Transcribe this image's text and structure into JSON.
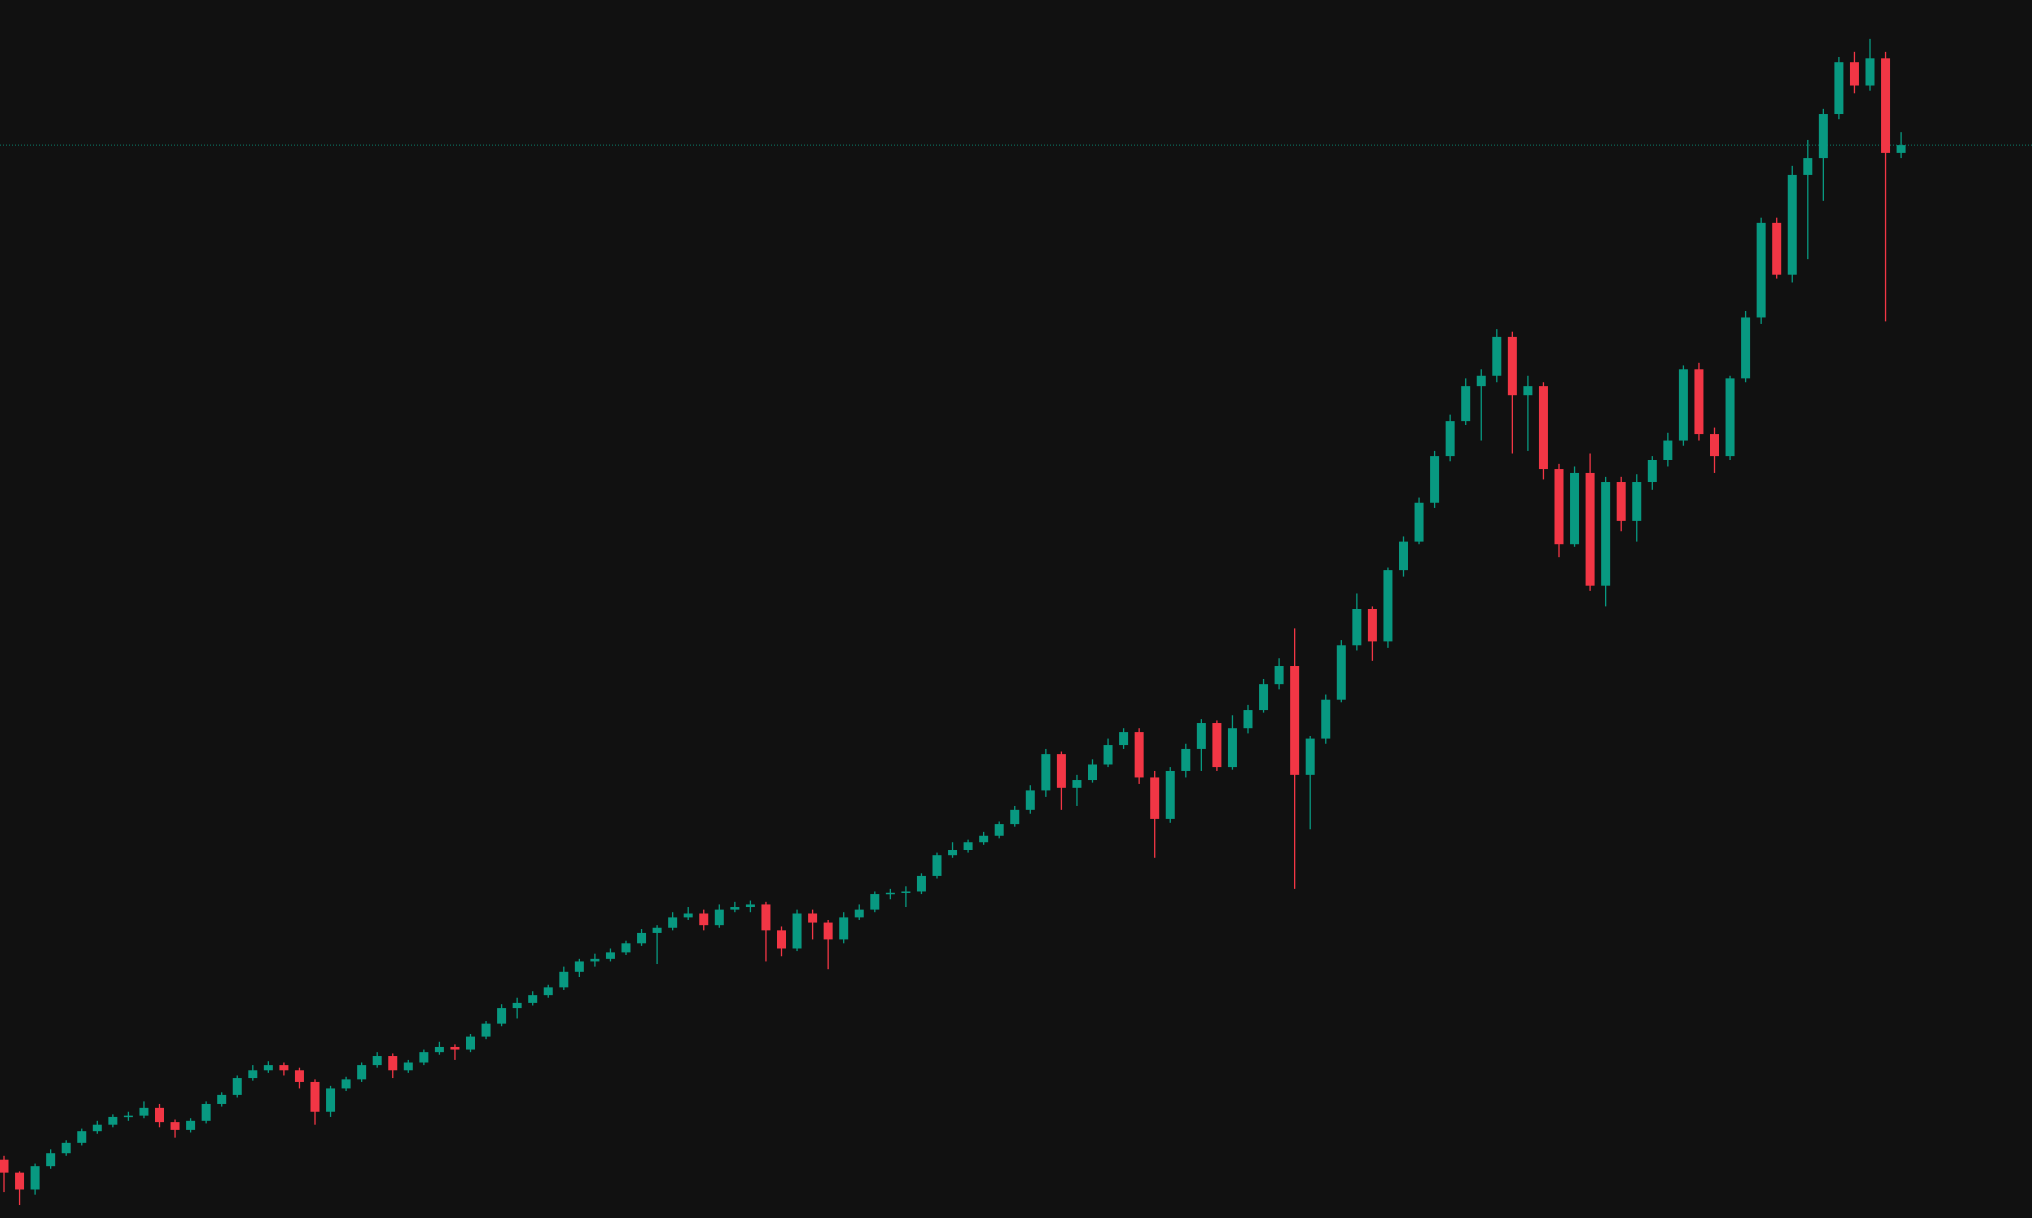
{
  "chart_data": {
    "type": "candlestick",
    "up_color": "#089981",
    "down_color": "#f23645",
    "background": "#111111",
    "ylim": [
      0,
      940
    ],
    "price_line": true,
    "open": [
      45,
      35,
      22,
      40,
      50,
      58,
      67,
      72,
      78,
      79,
      85,
      74,
      68,
      75,
      88,
      95,
      108,
      114,
      118,
      114,
      105,
      82,
      100,
      107,
      118,
      125,
      114,
      120,
      128,
      132,
      130,
      140,
      150,
      162,
      166,
      172,
      178,
      190,
      198,
      200,
      205,
      212,
      220,
      224,
      232,
      235,
      226,
      238,
      240,
      242,
      222,
      208,
      235,
      228,
      215,
      232,
      238,
      250,
      251,
      252,
      264,
      280,
      284,
      290,
      295,
      304,
      315,
      330,
      358,
      332,
      338,
      350,
      365,
      375,
      340,
      308,
      345,
      362,
      382,
      348,
      378,
      392,
      412,
      426,
      342,
      370,
      400,
      442,
      470,
      445,
      500,
      522,
      552,
      588,
      615,
      642,
      650,
      680,
      635,
      642,
      578,
      520,
      575,
      488,
      568,
      538,
      568,
      585,
      600,
      655,
      605,
      588,
      648,
      695,
      768,
      728,
      805,
      818,
      852,
      892,
      874,
      895,
      822
    ],
    "high": [
      48,
      36,
      42,
      53,
      60,
      69,
      75,
      80,
      82,
      90,
      88,
      76,
      77,
      90,
      97,
      110,
      118,
      121,
      120,
      116,
      107,
      102,
      109,
      120,
      128,
      127,
      122,
      130,
      136,
      134,
      142,
      152,
      165,
      170,
      175,
      180,
      194,
      200,
      204,
      208,
      214,
      223,
      226,
      236,
      240,
      238,
      242,
      244,
      245,
      244,
      225,
      238,
      238,
      230,
      236,
      242,
      252,
      254,
      256,
      266,
      282,
      290,
      292,
      298,
      306,
      318,
      334,
      362,
      360,
      342,
      354,
      370,
      378,
      378,
      345,
      348,
      366,
      385,
      384,
      388,
      396,
      416,
      432,
      455,
      372,
      404,
      446,
      482,
      472,
      502,
      526,
      556,
      592,
      620,
      648,
      655,
      686,
      684,
      650,
      645,
      582,
      580,
      590,
      572,
      572,
      574,
      588,
      606,
      658,
      660,
      610,
      650,
      700,
      772,
      772,
      812,
      832,
      856,
      896,
      900,
      910,
      900,
      838
    ],
    "low": [
      20,
      10,
      18,
      38,
      48,
      56,
      65,
      70,
      75,
      77,
      70,
      62,
      66,
      73,
      86,
      93,
      106,
      112,
      110,
      100,
      72,
      78,
      98,
      105,
      116,
      108,
      112,
      118,
      126,
      122,
      128,
      138,
      148,
      154,
      164,
      170,
      176,
      186,
      194,
      198,
      203,
      210,
      196,
      222,
      230,
      222,
      224,
      236,
      236,
      198,
      202,
      206,
      215,
      192,
      212,
      230,
      236,
      246,
      240,
      250,
      262,
      278,
      282,
      288,
      293,
      302,
      312,
      325,
      315,
      318,
      336,
      348,
      362,
      335,
      278,
      305,
      340,
      345,
      345,
      346,
      374,
      390,
      408,
      254,
      300,
      366,
      398,
      438,
      430,
      440,
      495,
      520,
      548,
      584,
      612,
      600,
      645,
      590,
      592,
      570,
      510,
      518,
      484,
      472,
      530,
      522,
      562,
      580,
      596,
      600,
      575,
      585,
      645,
      690,
      725,
      722,
      740,
      785,
      848,
      868,
      870,
      692,
      818
    ],
    "close": [
      35,
      22,
      40,
      50,
      58,
      67,
      72,
      78,
      79,
      85,
      74,
      68,
      75,
      88,
      95,
      108,
      114,
      118,
      114,
      105,
      82,
      100,
      107,
      118,
      125,
      114,
      120,
      128,
      132,
      130,
      140,
      150,
      162,
      166,
      172,
      178,
      190,
      198,
      200,
      205,
      212,
      220,
      224,
      232,
      235,
      226,
      238,
      240,
      242,
      222,
      208,
      235,
      228,
      215,
      232,
      238,
      250,
      251,
      252,
      264,
      280,
      284,
      290,
      295,
      304,
      315,
      330,
      358,
      332,
      338,
      350,
      365,
      375,
      340,
      308,
      345,
      362,
      382,
      348,
      378,
      392,
      412,
      426,
      342,
      370,
      400,
      442,
      470,
      445,
      500,
      522,
      552,
      588,
      615,
      642,
      650,
      680,
      635,
      642,
      578,
      520,
      575,
      488,
      568,
      538,
      568,
      585,
      600,
      655,
      605,
      588,
      648,
      695,
      768,
      728,
      805,
      818,
      852,
      892,
      874,
      895,
      822,
      828
    ]
  }
}
